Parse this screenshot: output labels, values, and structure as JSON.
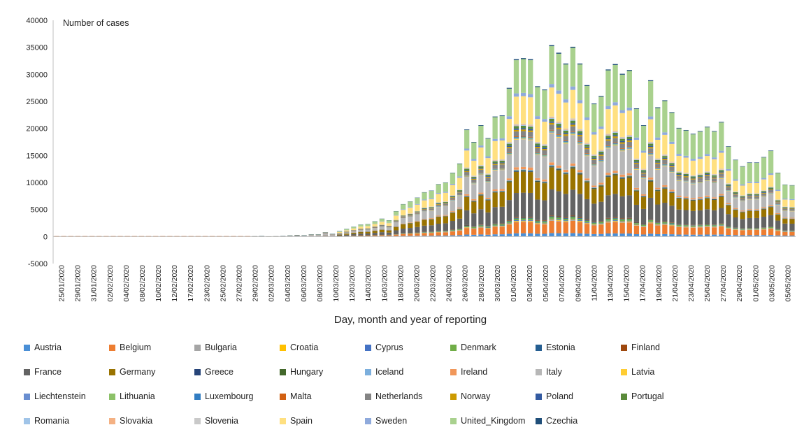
{
  "chart_data": {
    "type": "bar",
    "stacked": true,
    "title": "",
    "ylabel": "Number of cases",
    "xlabel": "Day, month and year of reporting",
    "ylim": [
      -5000,
      40000
    ],
    "yticks": [
      -5000,
      0,
      5000,
      10000,
      15000,
      20000,
      25000,
      30000,
      35000,
      40000
    ],
    "legend_position": "bottom",
    "grid": false,
    "x_start": "25/01/2020",
    "x_end": "05/05/2020",
    "xtick_labels": [
      "25/01/2020",
      "29/01/2020",
      "31/01/2020",
      "02/02/2020",
      "04/02/2020",
      "08/02/2020",
      "10/02/2020",
      "12/02/2020",
      "17/02/2020",
      "23/02/2020",
      "25/02/2020",
      "27/02/2020",
      "29/02/2020",
      "02/03/2020",
      "04/03/2020",
      "06/03/2020",
      "08/03/2020",
      "10/03/2020",
      "12/03/2020",
      "14/03/2020",
      "16/03/2020",
      "18/03/2020",
      "20/03/2020",
      "22/03/2020",
      "24/03/2020",
      "26/03/2020",
      "28/03/2020",
      "30/03/2020",
      "01/04/2020",
      "03/04/2020",
      "05/04/2020",
      "07/04/2020",
      "09/04/2020",
      "11/04/2020",
      "13/04/2020",
      "15/04/2020",
      "17/04/2020",
      "19/04/2020",
      "21/04/2020",
      "23/04/2020",
      "25/04/2020",
      "27/04/2020",
      "29/04/2020",
      "01/05/2020",
      "03/05/2020",
      "05/05/2020"
    ],
    "bar_totals": [
      0,
      0,
      0,
      0,
      0,
      0,
      0,
      0,
      0,
      0,
      0,
      0,
      0,
      0,
      0,
      0,
      0,
      0,
      0,
      0,
      0,
      0,
      0,
      0,
      0,
      0,
      0,
      0,
      50,
      80,
      30,
      50,
      100,
      200,
      300,
      250,
      400,
      400,
      800,
      500,
      1000,
      1400,
      1800,
      2200,
      2300,
      2800,
      3300,
      3000,
      4700,
      6000,
      6500,
      7200,
      8200,
      8500,
      9700,
      10000,
      11800,
      13500,
      19800,
      17500,
      20600,
      18200,
      22200,
      22400,
      27500,
      32800,
      33000,
      32800,
      27800,
      27200,
      35400,
      34000,
      32000,
      35100,
      32000,
      28000,
      24600,
      26000,
      30900,
      31900,
      30100,
      30800,
      23700,
      20600,
      28900,
      23900,
      25200,
      23000,
      20100,
      19700,
      19000,
      19500,
      20300,
      19500,
      21200,
      16700,
      14200,
      13000,
      13700,
      13700,
      14700,
      15900,
      11800,
      9600,
      9500
    ],
    "series": [
      {
        "name": "Austria",
        "color": "#4a8fd6"
      },
      {
        "name": "Belgium",
        "color": "#ed7d31"
      },
      {
        "name": "Bulgaria",
        "color": "#a5a5a5"
      },
      {
        "name": "Croatia",
        "color": "#ffc000"
      },
      {
        "name": "Cyprus",
        "color": "#4472c4"
      },
      {
        "name": "Denmark",
        "color": "#70ad47"
      },
      {
        "name": "Estonia",
        "color": "#255e91"
      },
      {
        "name": "Finland",
        "color": "#9e480e"
      },
      {
        "name": "France",
        "color": "#636363"
      },
      {
        "name": "Germany",
        "color": "#997300"
      },
      {
        "name": "Greece",
        "color": "#264478"
      },
      {
        "name": "Hungary",
        "color": "#43682b"
      },
      {
        "name": "Iceland",
        "color": "#7cafdd"
      },
      {
        "name": "Ireland",
        "color": "#f1975a"
      },
      {
        "name": "Italy",
        "color": "#b7b7b7"
      },
      {
        "name": "Latvia",
        "color": "#ffcd33"
      },
      {
        "name": "Liechtenstein",
        "color": "#698ed0"
      },
      {
        "name": "Lithuania",
        "color": "#8cc168"
      },
      {
        "name": "Luxembourg",
        "color": "#327dc2"
      },
      {
        "name": "Malta",
        "color": "#d26012"
      },
      {
        "name": "Netherlands",
        "color": "#848484"
      },
      {
        "name": "Norway",
        "color": "#cc9a00"
      },
      {
        "name": "Poland",
        "color": "#335aa1"
      },
      {
        "name": "Portugal",
        "color": "#5a8a3a"
      },
      {
        "name": "Romania",
        "color": "#a0c4e8"
      },
      {
        "name": "Slovakia",
        "color": "#f4b183"
      },
      {
        "name": "Slovenia",
        "color": "#c9c9c9"
      },
      {
        "name": "Spain",
        "color": "#ffe080"
      },
      {
        "name": "Sweden",
        "color": "#8faadc"
      },
      {
        "name": "United_Kingdom",
        "color": "#a9d18e"
      },
      {
        "name": "Czechia",
        "color": "#1f4e79"
      }
    ]
  }
}
